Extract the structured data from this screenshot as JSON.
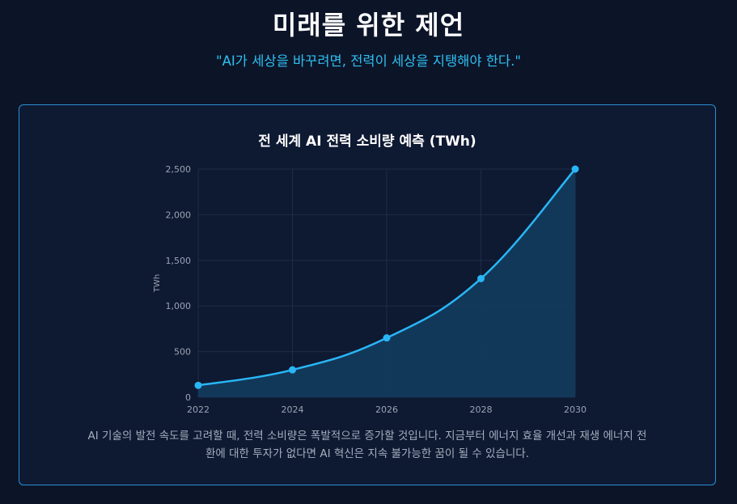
{
  "header": {
    "title": "미래를 위한 제언",
    "subtitle": "\"AI가 세상을 바꾸려면, 전력이 세상을 지탱해야 한다.\""
  },
  "card": {
    "description": "AI 기술의 발전 속도를 고려할 때, 전력 소비량은 폭발적으로 증가할 것입니다. 지금부터 에너지 효율 개선과 재생 에너지 전환에 대한 투자가 없다면 AI 혁신은 지속 불가능한 꿈이 될 수 있습니다."
  },
  "colors": {
    "accent": "#2fc0f0",
    "line": "#29b6f6",
    "area": "#133a5c",
    "grid": "#1f2d47",
    "border": "#2b8fd0"
  },
  "chart_data": {
    "type": "area",
    "title": "전 세계 AI 전력 소비량 예측 (TWh)",
    "xlabel": "",
    "ylabel": "TWh",
    "x": [
      "2022",
      "2024",
      "2026",
      "2028",
      "2030"
    ],
    "series": [
      {
        "values": [
          130,
          300,
          650,
          1300,
          2500
        ]
      }
    ],
    "ylim": [
      0,
      2500
    ],
    "yticks": [
      "0",
      "500",
      "1,000",
      "1,500",
      "2,000",
      "2,500"
    ],
    "grid": true,
    "legend": "none"
  }
}
